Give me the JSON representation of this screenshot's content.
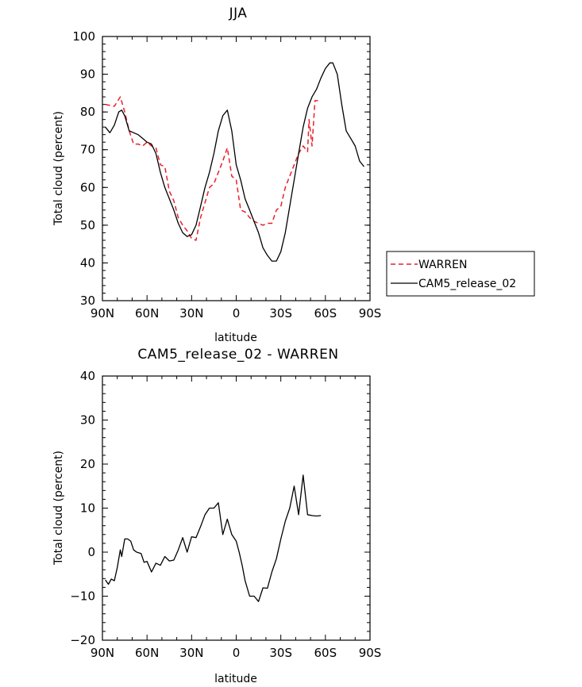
{
  "chart_data": [
    {
      "type": "line",
      "title": "JJA",
      "xlabel": "latitude",
      "ylabel": "Total cloud (percent)",
      "xlim": [
        90,
        -90
      ],
      "ylim": [
        30,
        100
      ],
      "x_tick_values": [
        90,
        60,
        30,
        0,
        -30,
        -60,
        -90
      ],
      "x_tick_labels": [
        "90N",
        "60N",
        "30N",
        "0",
        "30S",
        "60S",
        "90S"
      ],
      "y_tick_values": [
        30,
        40,
        50,
        60,
        70,
        80,
        90,
        100
      ],
      "y_tick_labels": [
        "30",
        "40",
        "50",
        "60",
        "70",
        "80",
        "90",
        "100"
      ],
      "legend": {
        "position": "right",
        "entries": [
          "WARREN",
          "CAM5_release_02"
        ]
      },
      "series": [
        {
          "name": "WARREN",
          "style": "dashed",
          "color": "#e8202a",
          "x": [
            88,
            82,
            78,
            75,
            72,
            69,
            66,
            63,
            60,
            57,
            54,
            51,
            48,
            45,
            42,
            39,
            36,
            33,
            30,
            27,
            24,
            21,
            18,
            15,
            12,
            9,
            6,
            3,
            0,
            -3,
            -6,
            -9,
            -12,
            -15,
            -18,
            -21,
            -24,
            -27,
            -30,
            -33,
            -36,
            -39,
            -42,
            -45,
            -48,
            -49,
            -51,
            -53,
            -55
          ],
          "y": [
            82,
            81.5,
            84,
            80,
            75,
            71.5,
            71.5,
            71,
            72,
            71,
            70.5,
            66,
            65.5,
            59,
            56.5,
            52,
            50,
            48.5,
            46.5,
            46,
            52,
            56,
            60,
            61,
            64,
            67,
            70.5,
            63,
            62,
            54,
            53.5,
            52,
            51,
            50.5,
            50,
            50.5,
            50.5,
            54,
            55,
            60,
            63,
            66,
            69,
            71,
            69.5,
            78,
            71,
            83,
            83
          ]
        },
        {
          "name": "CAM5_release_02",
          "style": "solid",
          "color": "#000000",
          "x": [
            88,
            85,
            82,
            79,
            77,
            75,
            72,
            69,
            66,
            63,
            60,
            57,
            54,
            51,
            48,
            45,
            42,
            39,
            36,
            33,
            30,
            27,
            24,
            21,
            18,
            15,
            12,
            9,
            6,
            3,
            0,
            -3,
            -6,
            -9,
            -12,
            -15,
            -18,
            -21,
            -24,
            -27,
            -30,
            -33,
            -36,
            -39,
            -42,
            -45,
            -48,
            -51,
            -54,
            -57,
            -60,
            -63,
            -65,
            -68,
            -71,
            -74,
            -77,
            -80,
            -83,
            -86
          ],
          "y": [
            76,
            74.5,
            76.5,
            80,
            80.5,
            79,
            75,
            74.5,
            74,
            73,
            72,
            71.5,
            69,
            64,
            60,
            57,
            54,
            50.5,
            48,
            47,
            47.5,
            50,
            55,
            60,
            64,
            69,
            75,
            79,
            80.5,
            75,
            66,
            62,
            57,
            54,
            51,
            48,
            44,
            42,
            40.5,
            40.5,
            43,
            48,
            55,
            62,
            69,
            76,
            81,
            84,
            86,
            89,
            91.5,
            93,
            93,
            90,
            82,
            75,
            73,
            71,
            67,
            65.5
          ]
        }
      ]
    },
    {
      "type": "line",
      "title": "CAM5_release_02 - WARREN",
      "xlabel": "latitude",
      "ylabel": "Total cloud (percent)",
      "xlim": [
        90,
        -90
      ],
      "ylim": [
        -20,
        40
      ],
      "x_tick_values": [
        90,
        60,
        30,
        0,
        -30,
        -60,
        -90
      ],
      "x_tick_labels": [
        "90N",
        "60N",
        "30N",
        "0",
        "30S",
        "60S",
        "90S"
      ],
      "y_tick_values": [
        -20,
        -10,
        0,
        10,
        20,
        30,
        40
      ],
      "y_tick_labels": [
        "-20",
        "-10",
        "0",
        "10",
        "20",
        "30",
        "40"
      ],
      "series": [
        {
          "style": "solid",
          "color": "#000000",
          "x": [
            88,
            86,
            84,
            82,
            80,
            78,
            77,
            75,
            73,
            71,
            69,
            67,
            64,
            62,
            60,
            57,
            54,
            51,
            48,
            45,
            42,
            39,
            36,
            33,
            30,
            27,
            24,
            21,
            18,
            15,
            12,
            9,
            6,
            3,
            0,
            -2,
            -4,
            -6,
            -9,
            -12,
            -15,
            -18,
            -21,
            -24,
            -27,
            -30,
            -33,
            -36,
            -39,
            -42,
            -45,
            -48,
            -51,
            -54,
            -57
          ],
          "y": [
            -6.3,
            -7.3,
            -6.1,
            -6.5,
            -3.5,
            0.5,
            -1,
            3,
            3,
            2.5,
            0.5,
            0,
            -0.3,
            -2.3,
            -2.1,
            -4.5,
            -2.5,
            -3,
            -1,
            -2,
            -1.8,
            0.5,
            3.3,
            0,
            3.5,
            3.3,
            5.8,
            8.5,
            10,
            10,
            11.2,
            4,
            7.5,
            4,
            2.5,
            0,
            -3,
            -6.5,
            -10,
            -10,
            -11.2,
            -8.1,
            -8.2,
            -4.5,
            -1.5,
            3,
            7,
            10,
            15,
            8.5,
            17.5,
            8.5,
            8.3,
            8.2,
            8.3
          ]
        }
      ]
    }
  ]
}
